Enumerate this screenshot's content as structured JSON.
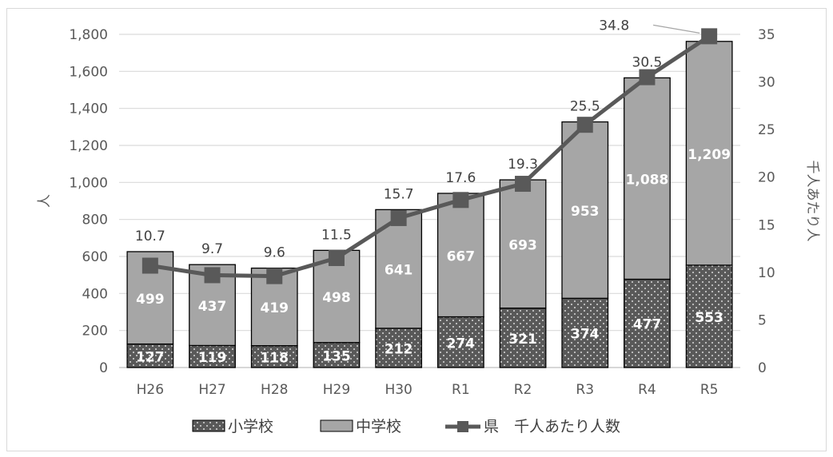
{
  "chart_data": {
    "type": "bar",
    "stacked": true,
    "categories": [
      "H26",
      "H27",
      "H28",
      "H29",
      "H30",
      "R1",
      "R2",
      "R3",
      "R4",
      "R5"
    ],
    "series": [
      {
        "name": "小学校",
        "kind": "bar",
        "axis": "left",
        "values": [
          127,
          119,
          118,
          135,
          212,
          274,
          321,
          374,
          477,
          553
        ],
        "labels": [
          "127",
          "119",
          "118",
          "135",
          "212",
          "274",
          "321",
          "374",
          "477",
          "553"
        ],
        "color": "#595959",
        "pattern": "dots"
      },
      {
        "name": "中学校",
        "kind": "bar",
        "axis": "left",
        "values": [
          499,
          437,
          419,
          498,
          641,
          667,
          693,
          953,
          1088,
          1209
        ],
        "labels": [
          "499",
          "437",
          "419",
          "498",
          "641",
          "667",
          "693",
          "953",
          "1,088",
          "1,209"
        ],
        "color": "#a6a6a6"
      },
      {
        "name": "県　千人あたり人数",
        "kind": "line",
        "axis": "right",
        "values": [
          10.7,
          9.7,
          9.6,
          11.5,
          15.7,
          17.6,
          19.3,
          25.5,
          30.5,
          34.8
        ],
        "labels": [
          "10.7",
          "9.7",
          "9.6",
          "11.5",
          "15.7",
          "17.6",
          "19.3",
          "25.5",
          "30.5",
          "34.8"
        ],
        "color": "#595959"
      }
    ],
    "ylabel": "人",
    "y2label": "千人あたり人",
    "ylim": [
      0,
      1800
    ],
    "y2lim": [
      0,
      35
    ],
    "yticks": [
      "0",
      "200",
      "400",
      "600",
      "800",
      "1,000",
      "1,200",
      "1,400",
      "1,600",
      "1,800"
    ],
    "y2ticks": [
      "0",
      "5",
      "10",
      "15",
      "20",
      "25",
      "30",
      "35"
    ],
    "grid": true,
    "legend": "bottom"
  }
}
